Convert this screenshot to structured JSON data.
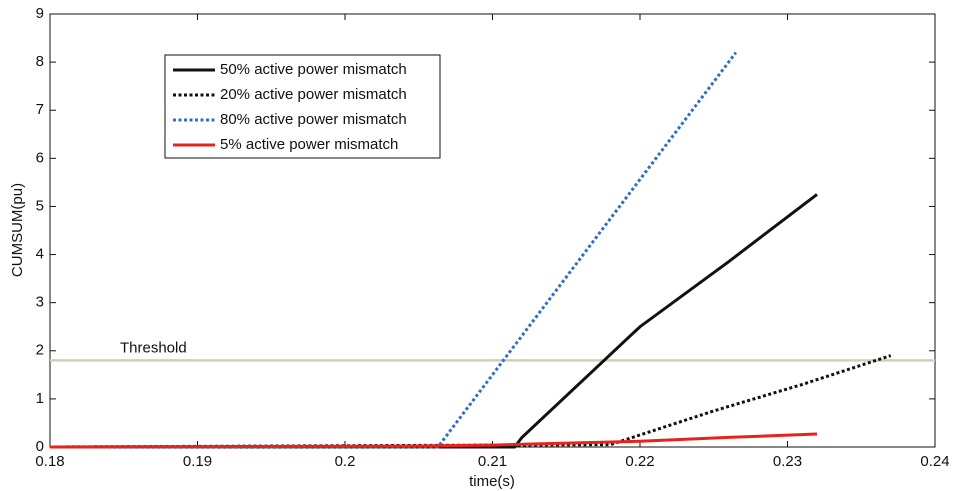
{
  "chart_data": {
    "type": "line",
    "xlabel": "time(s)",
    "ylabel": "CUMSUM(pu)",
    "xlim": [
      0.18,
      0.24
    ],
    "xticks": [
      0.18,
      0.19,
      0.2,
      0.21,
      0.22,
      0.23,
      0.24
    ],
    "ylim": [
      0,
      9
    ],
    "yticks": [
      0,
      1,
      2,
      3,
      4,
      5,
      6,
      7,
      8,
      9
    ],
    "threshold": {
      "label": "Threshold",
      "value": 1.8,
      "color": "#c8d4b8"
    },
    "series": [
      {
        "name": "50% active power mismatch",
        "color": "#111111",
        "dash": "solid",
        "x": [
          0.18,
          0.2115,
          0.212,
          0.216,
          0.22,
          0.226,
          0.232
        ],
        "values": [
          0,
          0,
          0.2,
          1.35,
          2.5,
          3.85,
          5.25
        ]
      },
      {
        "name": "20% active power mismatch",
        "color": "#111111",
        "dash": "dotted",
        "x": [
          0.18,
          0.218,
          0.225,
          0.231,
          0.237
        ],
        "values": [
          0,
          0.05,
          0.75,
          1.3,
          1.9
        ]
      },
      {
        "name": "80% active power mismatch",
        "color": "#2f6fc8",
        "dash": "dotted",
        "x": [
          0.18,
          0.2063,
          0.2265
        ],
        "values": [
          0,
          0,
          8.2
        ]
      },
      {
        "name": "5% active power mismatch",
        "color": "#e8231c",
        "dash": "solid",
        "x": [
          0.18,
          0.205,
          0.21,
          0.22,
          0.226,
          0.232
        ],
        "values": [
          0,
          0.02,
          0.04,
          0.12,
          0.2,
          0.27
        ]
      }
    ]
  }
}
